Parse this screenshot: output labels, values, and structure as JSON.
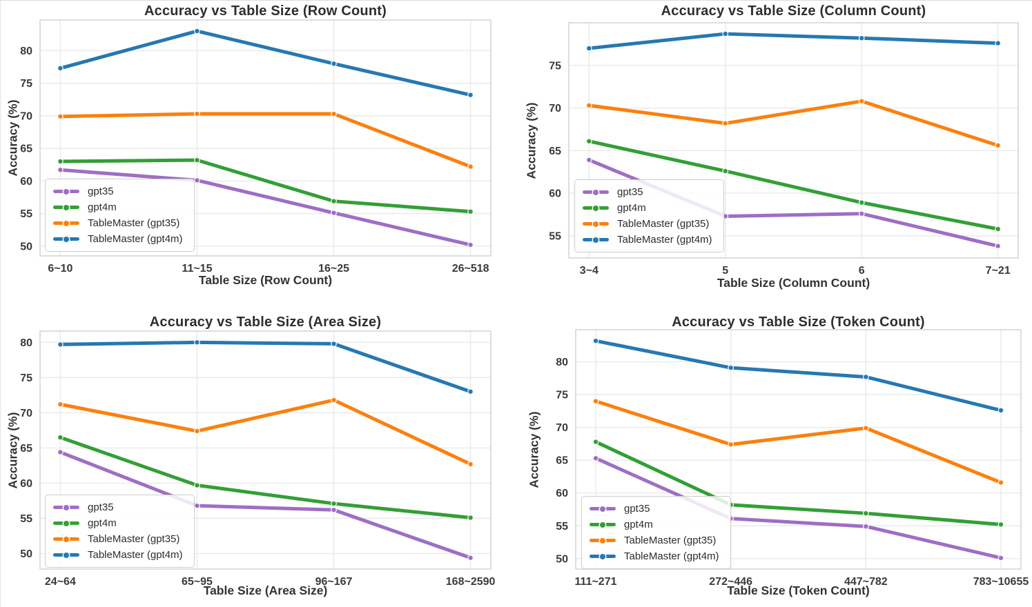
{
  "page": {
    "background": "#ffffff",
    "grid_color": "#e9e9e9",
    "spine_color": "#cfcfcf",
    "tick_label_color": "#3a3a3a",
    "text_color": "#2e2e2e"
  },
  "chart_data": [
    {
      "type": "line",
      "title": "Accuracy vs Table Size (Row Count)",
      "xlabel": "Table Size (Row Count)",
      "ylabel": "Accuracy (%)",
      "categories": [
        "6~10",
        "11~15",
        "16~25",
        "26~518"
      ],
      "yticks": [
        50,
        55,
        60,
        65,
        70,
        75,
        80
      ],
      "ylim": [
        48.5,
        84.7
      ],
      "grid": true,
      "legend_position": "lower left",
      "series": [
        {
          "name": "gpt35",
          "color": "#9e6ec4",
          "values": [
            61.7,
            60.1,
            55.1,
            50.2
          ]
        },
        {
          "name": "gpt4m",
          "color": "#339f35",
          "values": [
            63.0,
            63.2,
            56.9,
            55.3
          ]
        },
        {
          "name": "TableMaster (gpt35)",
          "color": "#fb800e",
          "values": [
            69.9,
            70.3,
            70.3,
            62.2
          ]
        },
        {
          "name": "TableMaster (gpt4m)",
          "color": "#2678b2",
          "values": [
            77.3,
            83.0,
            78.0,
            73.2
          ]
        }
      ]
    },
    {
      "type": "line",
      "title": "Accuracy vs Table Size (Column Count)",
      "xlabel": "Table Size (Column Count)",
      "ylabel": "Accuracy (%)",
      "categories": [
        "3~4",
        "5",
        "6",
        "7~21"
      ],
      "yticks": [
        55,
        60,
        65,
        70,
        75
      ],
      "ylim": [
        52.4,
        80.0
      ],
      "grid": true,
      "legend_position": "lower left",
      "series": [
        {
          "name": "gpt35",
          "color": "#9e6ec4",
          "values": [
            63.9,
            57.3,
            57.6,
            53.8
          ]
        },
        {
          "name": "gpt4m",
          "color": "#339f35",
          "values": [
            66.1,
            62.6,
            58.9,
            55.8
          ]
        },
        {
          "name": "TableMaster (gpt35)",
          "color": "#fb800e",
          "values": [
            70.3,
            68.2,
            70.8,
            65.6
          ]
        },
        {
          "name": "TableMaster (gpt4m)",
          "color": "#2678b2",
          "values": [
            77.0,
            78.7,
            78.2,
            77.6
          ]
        }
      ]
    },
    {
      "type": "line",
      "title": "Accuracy vs Table Size (Area Size)",
      "xlabel": "Table Size (Area Size)",
      "ylabel": "Accuracy (%)",
      "categories": [
        "24~64",
        "65~95",
        "96~167",
        "168~2590"
      ],
      "yticks": [
        50,
        55,
        60,
        65,
        70,
        75,
        80
      ],
      "ylim": [
        47.8,
        81.6
      ],
      "grid": true,
      "legend_position": "lower left",
      "series": [
        {
          "name": "gpt35",
          "color": "#9e6ec4",
          "values": [
            64.4,
            56.8,
            56.2,
            49.4
          ]
        },
        {
          "name": "gpt4m",
          "color": "#339f35",
          "values": [
            66.5,
            59.7,
            57.1,
            55.1
          ]
        },
        {
          "name": "TableMaster (gpt35)",
          "color": "#fb800e",
          "values": [
            71.2,
            67.4,
            71.8,
            62.7
          ]
        },
        {
          "name": "TableMaster (gpt4m)",
          "color": "#2678b2",
          "values": [
            79.7,
            80.0,
            79.8,
            73.0
          ]
        }
      ]
    },
    {
      "type": "line",
      "title": "Accuracy vs Table Size (Token Count)",
      "xlabel": "Table Size (Token Count)",
      "ylabel": "Accuracy (%)",
      "categories": [
        "111~271",
        "272~446",
        "447~782",
        "783~10655"
      ],
      "yticks": [
        50,
        55,
        60,
        65,
        70,
        75,
        80
      ],
      "ylim": [
        48.4,
        84.9
      ],
      "grid": true,
      "legend_position": "lower left",
      "series": [
        {
          "name": "gpt35",
          "color": "#9e6ec4",
          "values": [
            65.3,
            56.1,
            54.9,
            50.1
          ]
        },
        {
          "name": "gpt4m",
          "color": "#339f35",
          "values": [
            67.8,
            58.2,
            56.9,
            55.2
          ]
        },
        {
          "name": "TableMaster (gpt35)",
          "color": "#fb800e",
          "values": [
            74.0,
            67.4,
            69.9,
            61.6
          ]
        },
        {
          "name": "TableMaster (gpt4m)",
          "color": "#2678b2",
          "values": [
            83.2,
            79.1,
            77.7,
            72.6
          ]
        }
      ]
    }
  ]
}
